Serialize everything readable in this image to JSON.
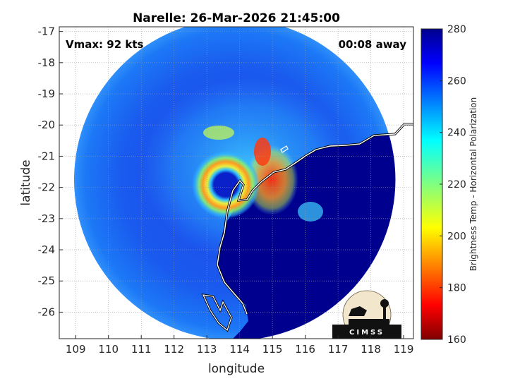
{
  "chart_data": {
    "type": "heatmap",
    "title": "Narelle: 26-Mar-2026 21:45:00",
    "xlabel": "longitude",
    "ylabel": "latitude",
    "xlim": [
      108.5,
      119.3
    ],
    "ylim": [
      -26.85,
      -16.85
    ],
    "xticks": [
      109,
      110,
      111,
      112,
      113,
      114,
      115,
      116,
      117,
      118,
      119
    ],
    "yticks": [
      -17,
      -18,
      -19,
      -20,
      -21,
      -22,
      -23,
      -24,
      -25,
      -26
    ],
    "grid": true,
    "annotations": {
      "vmax": "Vmax: 92 kts",
      "time_away": "00:08 away"
    },
    "colorbar": {
      "label": "Brightness Temp - Horizontal Polarization",
      "min": 160,
      "max": 280,
      "ticks": [
        160,
        180,
        200,
        220,
        240,
        260,
        280
      ],
      "colormap": "jet"
    },
    "storm_center": [
      113.8,
      -22.0
    ],
    "swath_center": [
      113.85,
      -21.75
    ],
    "swath_radius_deg": 4.9
  },
  "logo": {
    "text": "CIMSS"
  },
  "colors": {
    "ocean_warm": "#00008f",
    "background": "#ffffff"
  }
}
